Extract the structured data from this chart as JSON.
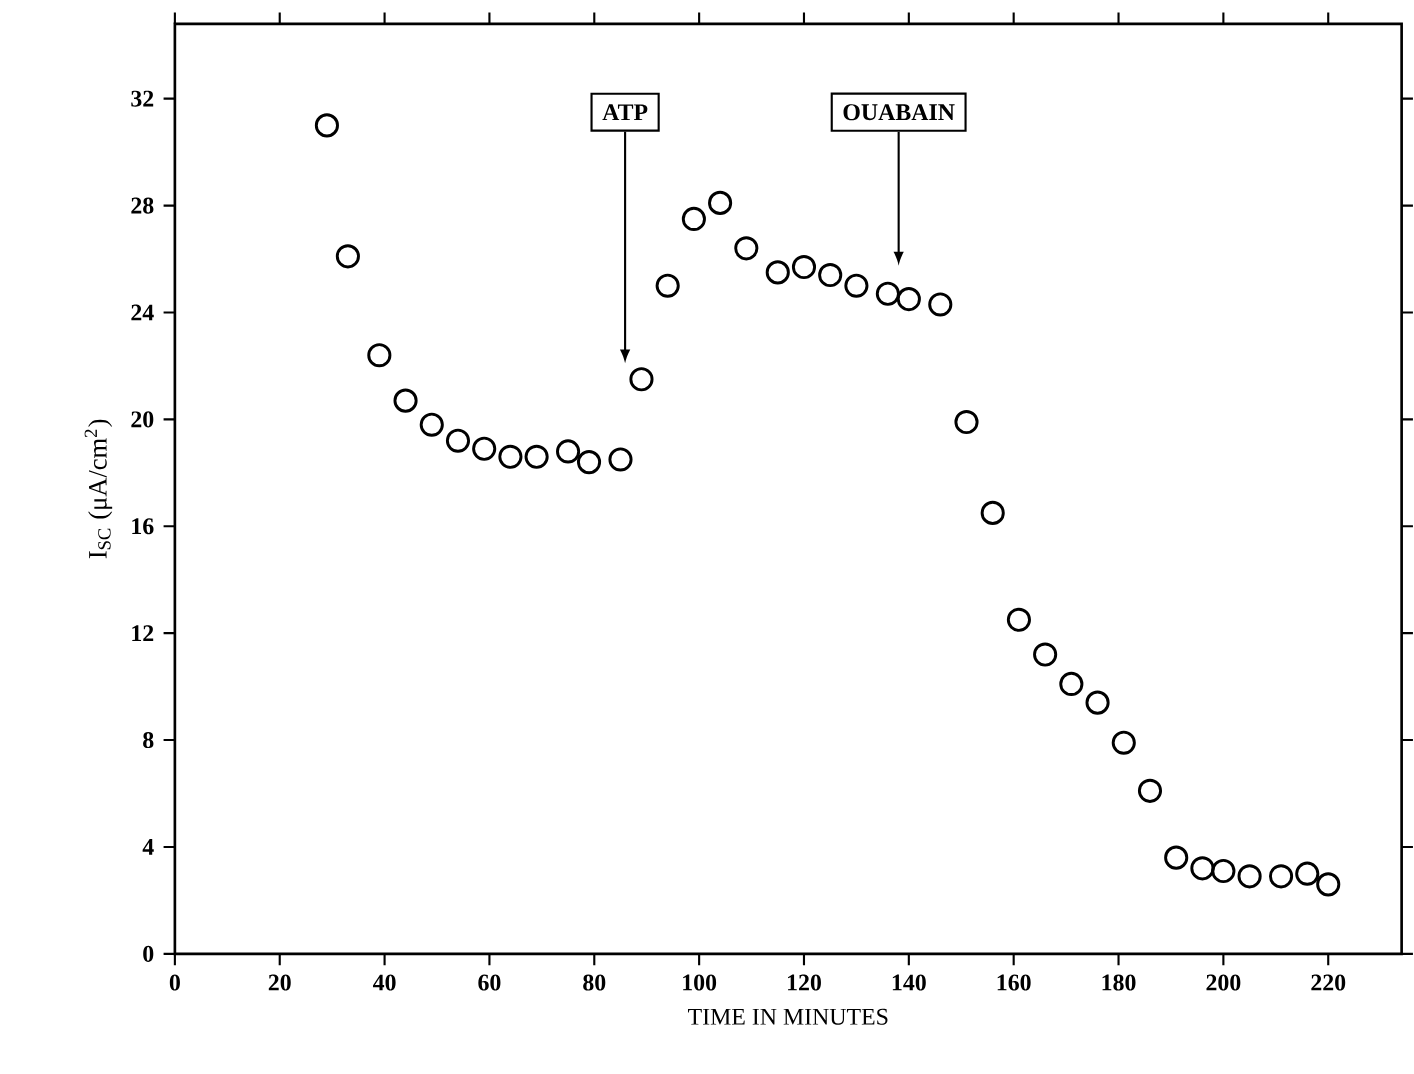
{
  "chart_data": {
    "type": "scatter",
    "xlabel": "TIME IN MINUTES",
    "ylabel": "I$_{SC}$ (μA/cm$^{2}$)",
    "xlim": [
      0,
      234
    ],
    "ylim": [
      0,
      34.8
    ],
    "xticks": [
      0,
      20,
      40,
      60,
      80,
      100,
      120,
      140,
      160,
      180,
      200,
      220
    ],
    "yticks": [
      0,
      4,
      8,
      12,
      16,
      20,
      24,
      28,
      32
    ],
    "marker": "circle",
    "grid": false,
    "series": [
      {
        "color": "#000000",
        "x": [
          29,
          33,
          39,
          44,
          49,
          54,
          59,
          64,
          69,
          75,
          79,
          85,
          89,
          94,
          99,
          104,
          109,
          115,
          120,
          125,
          130,
          136,
          140,
          146,
          151,
          156,
          161,
          166,
          171,
          176,
          181,
          186,
          191,
          196,
          200,
          205,
          211,
          216,
          220
        ],
        "values": [
          31.0,
          26.1,
          22.4,
          20.7,
          19.8,
          19.2,
          18.9,
          18.6,
          18.6,
          18.8,
          18.4,
          18.5,
          21.5,
          25.0,
          27.5,
          28.1,
          26.4,
          25.5,
          25.7,
          25.4,
          25.0,
          24.7,
          24.5,
          24.3,
          19.9,
          16.5,
          12.5,
          11.2,
          10.1,
          9.4,
          7.9,
          6.1,
          3.6,
          3.2,
          3.1,
          2.9,
          2.9,
          3.0,
          2.6
        ]
      }
    ],
    "annotations": [
      "ATP",
      "OUABAIN"
    ]
  }
}
